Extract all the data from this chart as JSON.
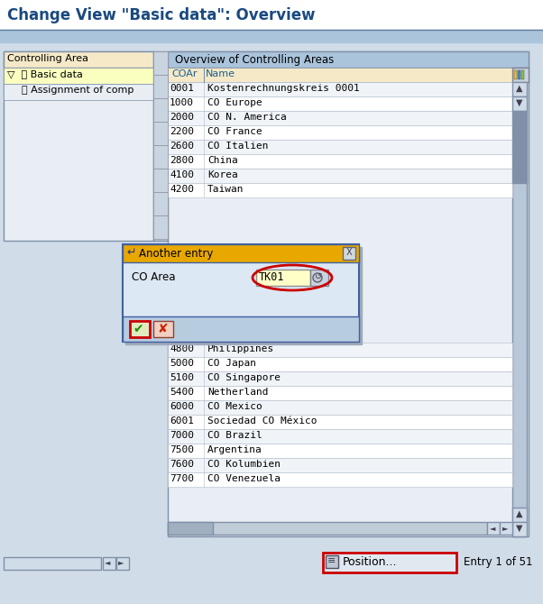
{
  "title": "Change View \"Basic data\": Overview",
  "bg_color": "#d0dce8",
  "white": "#ffffff",
  "table_header_color": "#f5e9c8",
  "tree_header_color": "#f5e9c8",
  "dialog_title_color": "#e8a800",
  "dialog_bg": "#dce8f4",
  "dialog_border": "#4060a0",
  "tree_items": [
    "Basic data",
    "Assignment of comp"
  ],
  "table_title": "Overview of Controlling Areas",
  "col_headers": [
    "COAr",
    "Name"
  ],
  "table_rows_top": [
    [
      "0001",
      "Kostenrechnungskreis 0001"
    ],
    [
      "1000",
      "CO Europe"
    ],
    [
      "2000",
      "CO N. America"
    ],
    [
      "2200",
      "CO France"
    ],
    [
      "2600",
      "CO Italien"
    ],
    [
      "2800",
      "China"
    ],
    [
      "4100",
      "Korea"
    ],
    [
      "4200",
      "Taiwan"
    ]
  ],
  "table_rows_bottom": [
    [
      "4800",
      "Philippines"
    ],
    [
      "5000",
      "CO Japan"
    ],
    [
      "5100",
      "CO Singapore"
    ],
    [
      "5400",
      "Netherland"
    ],
    [
      "6000",
      "CO Mexico"
    ],
    [
      "6001",
      "Sociedad CO México"
    ],
    [
      "7000",
      "CO Brazil"
    ],
    [
      "7500",
      "Argentina"
    ],
    [
      "7600",
      "CO Kolumbien"
    ],
    [
      "7700",
      "CO Venezuela"
    ]
  ],
  "dialog_title": "Another entry",
  "dialog_field_label": "CO Area",
  "dialog_field_value": "TK01",
  "entry_label": "Entry 1 of 51",
  "position_btn": "Position...",
  "controlling_area_label": "Controlling Area"
}
